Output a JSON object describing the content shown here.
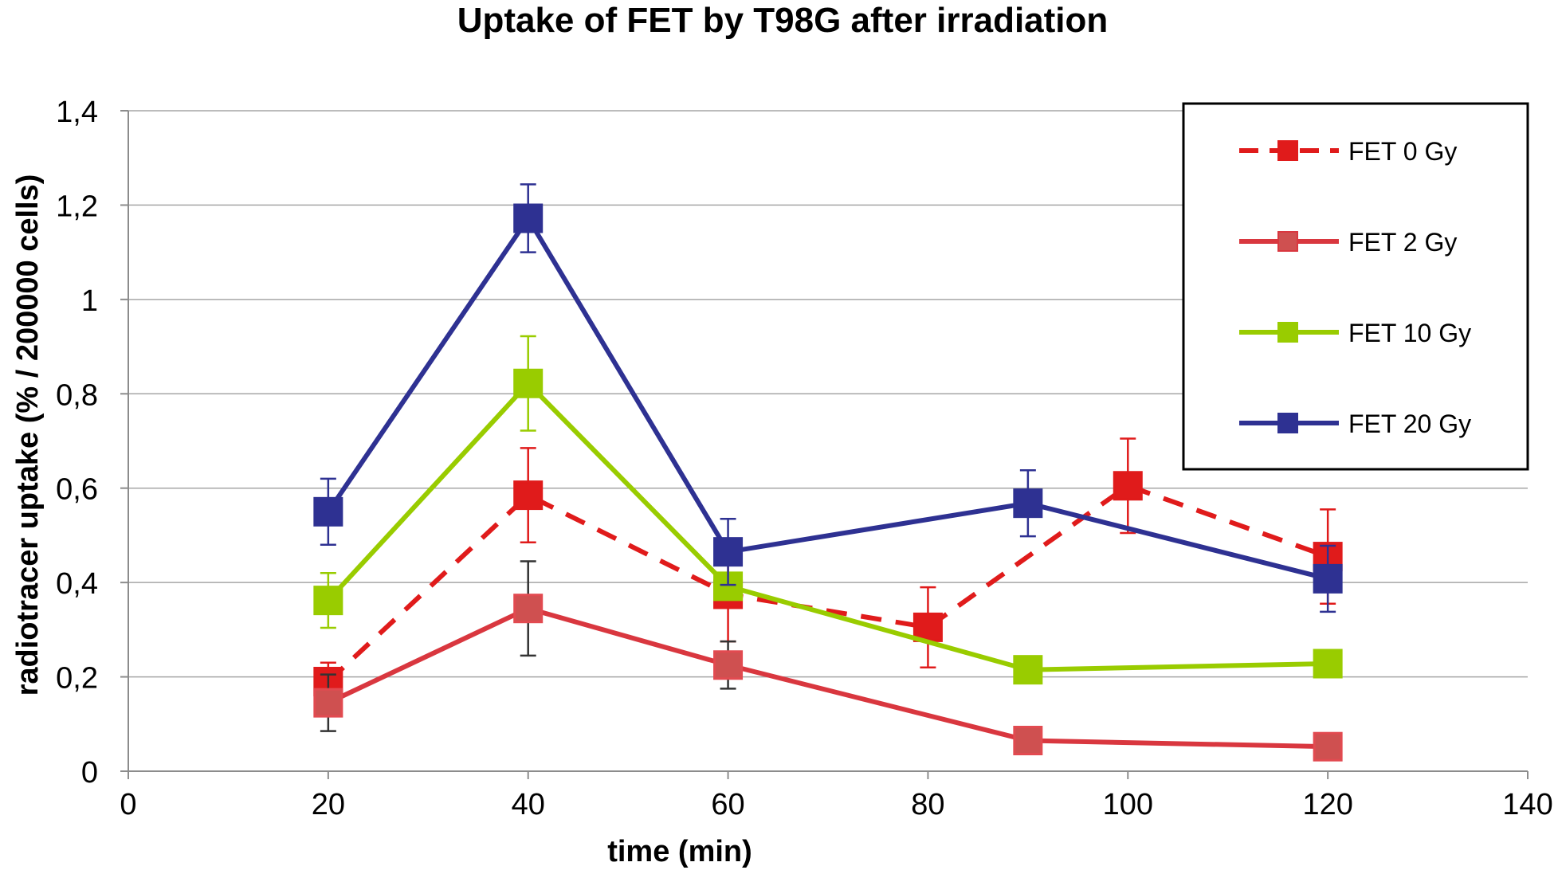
{
  "chart_data": {
    "type": "line",
    "title": "Uptake of FET by T98G after irradiation",
    "xlabel": "time (min)",
    "ylabel": "radiotracer uptake  (% / 200000 cells)",
    "xlim": [
      0,
      140
    ],
    "ylim": [
      0,
      1.4
    ],
    "x_ticks": [
      0,
      20,
      40,
      60,
      80,
      100,
      120,
      140
    ],
    "x_tick_labels": [
      "0",
      "20",
      "40",
      "60",
      "80",
      "100",
      "120",
      "140"
    ],
    "y_ticks": [
      0,
      0.2,
      0.4,
      0.6,
      0.8,
      1.0,
      1.2,
      1.4
    ],
    "y_tick_labels": [
      "0",
      "0,2",
      "0,4",
      "0,6",
      "0,8",
      "1",
      "1,2",
      "1,4"
    ],
    "grid": "horizontal",
    "legend_position": "top-right",
    "series": [
      {
        "name": "FET 0 Gy",
        "color": "#e01b1b",
        "line_style": "dashed",
        "points": [
          {
            "x": 20,
            "y": 0.19,
            "err": 0.04
          },
          {
            "x": 40,
            "y": 0.585,
            "err": 0.1
          },
          {
            "x": 60,
            "y": 0.375,
            "err": 0.1
          },
          {
            "x": 80,
            "y": 0.305,
            "err": 0.085
          },
          {
            "x": 100,
            "y": 0.605,
            "err": 0.1
          },
          {
            "x": 120,
            "y": 0.455,
            "err": 0.1
          }
        ]
      },
      {
        "name": "FET 2 Gy",
        "color": "#d9373f",
        "line_style": "solid",
        "points": [
          {
            "x": 20,
            "y": 0.145,
            "err": 0.06
          },
          {
            "x": 40,
            "y": 0.345,
            "err": 0.1
          },
          {
            "x": 60,
            "y": 0.225,
            "err": 0.05
          },
          {
            "x": 90,
            "y": 0.065,
            "err": 0
          },
          {
            "x": 120,
            "y": 0.052,
            "err": 0
          }
        ]
      },
      {
        "name": "FET 10 Gy",
        "color": "#99cc00",
        "line_style": "solid",
        "points": [
          {
            "x": 20,
            "y": 0.362,
            "err": 0.058
          },
          {
            "x": 40,
            "y": 0.822,
            "err": 0.1
          },
          {
            "x": 60,
            "y": 0.392,
            "err": 0
          },
          {
            "x": 90,
            "y": 0.215,
            "err": 0
          },
          {
            "x": 120,
            "y": 0.228,
            "err": 0
          }
        ]
      },
      {
        "name": "FET 20 Gy",
        "color": "#2e3192",
        "line_style": "solid",
        "points": [
          {
            "x": 20,
            "y": 0.55,
            "err": 0.07
          },
          {
            "x": 40,
            "y": 1.172,
            "err": 0.072
          },
          {
            "x": 60,
            "y": 0.465,
            "err": 0.07
          },
          {
            "x": 90,
            "y": 0.568,
            "err": 0.07
          },
          {
            "x": 120,
            "y": 0.408,
            "err": 0.07
          }
        ]
      }
    ]
  }
}
